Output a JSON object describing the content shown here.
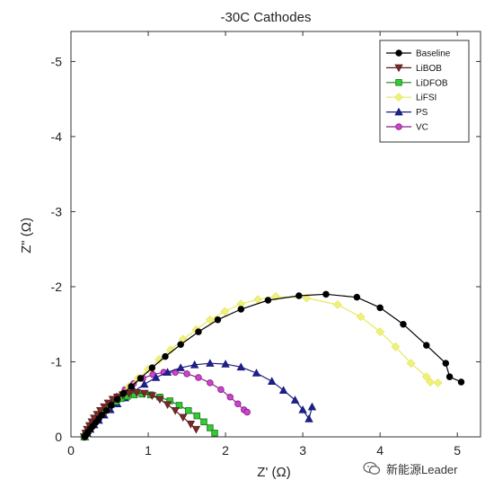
{
  "chart_data": {
    "type": "scatter",
    "title": "-30C Cathodes",
    "xlabel": "Z' (Ω)",
    "ylabel": "Z\" (Ω)",
    "xlim": [
      0,
      5.3
    ],
    "ylim": [
      0,
      -5.4
    ],
    "y_axis_inverted": true,
    "xticks": [
      0,
      1,
      2,
      3,
      4,
      5
    ],
    "xtick_labels": [
      "0",
      "1",
      "2",
      "3",
      "4",
      "5"
    ],
    "yticks": [
      0,
      -1,
      -2,
      -3,
      -4,
      -5
    ],
    "ytick_labels": [
      "0",
      "-1",
      "-2",
      "-3",
      "-4",
      "-5"
    ],
    "grid": false,
    "legend_position": "top-right",
    "series": [
      {
        "name": "Baseline",
        "marker": "circle",
        "line_color": "#000000",
        "fill_color": "#000000",
        "x": [
          0.18,
          0.2,
          0.22,
          0.25,
          0.28,
          0.32,
          0.36,
          0.4,
          0.46,
          0.52,
          0.6,
          0.68,
          0.78,
          0.9,
          1.05,
          1.22,
          1.42,
          1.65,
          1.9,
          2.2,
          2.55,
          2.95,
          3.3,
          3.7,
          4.0,
          4.3,
          4.6,
          4.85,
          4.9,
          5.05
        ],
        "y": [
          0.0,
          -0.03,
          -0.06,
          -0.1,
          -0.14,
          -0.19,
          -0.24,
          -0.29,
          -0.35,
          -0.42,
          -0.5,
          -0.58,
          -0.67,
          -0.78,
          -0.92,
          -1.07,
          -1.23,
          -1.4,
          -1.56,
          -1.7,
          -1.82,
          -1.88,
          -1.9,
          -1.86,
          -1.72,
          -1.5,
          -1.22,
          -0.98,
          -0.8,
          -0.73
        ]
      },
      {
        "name": "LiBOB",
        "marker": "triangle-down",
        "line_color": "#5a1f1f",
        "fill_color": "#7a2a2a",
        "x": [
          0.17,
          0.19,
          0.21,
          0.24,
          0.27,
          0.3,
          0.34,
          0.38,
          0.43,
          0.48,
          0.54,
          0.6,
          0.67,
          0.75,
          0.85,
          0.95,
          1.05,
          1.15,
          1.25,
          1.35,
          1.45,
          1.55,
          1.62
        ],
        "y": [
          0.0,
          -0.05,
          -0.1,
          -0.15,
          -0.2,
          -0.25,
          -0.3,
          -0.35,
          -0.4,
          -0.45,
          -0.5,
          -0.53,
          -0.56,
          -0.58,
          -0.59,
          -0.58,
          -0.55,
          -0.5,
          -0.43,
          -0.35,
          -0.26,
          -0.17,
          -0.1
        ]
      },
      {
        "name": "LiDFOB",
        "marker": "square",
        "line_color": "#1e7d1e",
        "fill_color": "#33cc33",
        "x": [
          0.17,
          0.19,
          0.22,
          0.25,
          0.28,
          0.32,
          0.36,
          0.41,
          0.46,
          0.52,
          0.58,
          0.65,
          0.73,
          0.82,
          0.92,
          1.03,
          1.15,
          1.28,
          1.4,
          1.52,
          1.63,
          1.72,
          1.8,
          1.86
        ],
        "y": [
          0.0,
          -0.04,
          -0.08,
          -0.13,
          -0.18,
          -0.23,
          -0.28,
          -0.33,
          -0.38,
          -0.43,
          -0.47,
          -0.51,
          -0.54,
          -0.56,
          -0.57,
          -0.56,
          -0.53,
          -0.48,
          -0.42,
          -0.35,
          -0.28,
          -0.2,
          -0.12,
          -0.05
        ]
      },
      {
        "name": "LiFSI",
        "marker": "diamond",
        "line_color": "#e8e860",
        "fill_color": "#f0f080",
        "x": [
          0.19,
          0.22,
          0.26,
          0.3,
          0.35,
          0.41,
          0.48,
          0.56,
          0.65,
          0.75,
          0.87,
          1.0,
          1.14,
          1.29,
          1.45,
          1.62,
          1.8,
          1.99,
          2.2,
          2.42,
          2.65,
          3.05,
          3.45,
          3.75,
          4.0,
          4.2,
          4.4,
          4.6,
          4.65,
          4.75
        ],
        "y": [
          0.0,
          -0.06,
          -0.12,
          -0.18,
          -0.25,
          -0.32,
          -0.4,
          -0.48,
          -0.57,
          -0.67,
          -0.78,
          -0.9,
          -1.03,
          -1.16,
          -1.3,
          -1.43,
          -1.56,
          -1.67,
          -1.77,
          -1.83,
          -1.87,
          -1.85,
          -1.76,
          -1.6,
          -1.4,
          -1.2,
          -0.98,
          -0.8,
          -0.73,
          -0.72
        ]
      },
      {
        "name": "PS",
        "marker": "triangle-up",
        "line_color": "#1a1a7a",
        "fill_color": "#1f1f8f",
        "x": [
          0.18,
          0.21,
          0.25,
          0.3,
          0.36,
          0.43,
          0.51,
          0.6,
          0.7,
          0.82,
          0.95,
          1.1,
          1.25,
          1.42,
          1.6,
          1.8,
          2.0,
          2.2,
          2.4,
          2.6,
          2.75,
          2.9,
          3.0,
          3.08,
          3.12
        ],
        "y": [
          0.0,
          -0.05,
          -0.1,
          -0.16,
          -0.22,
          -0.29,
          -0.36,
          -0.44,
          -0.52,
          -0.61,
          -0.7,
          -0.79,
          -0.86,
          -0.92,
          -0.96,
          -0.98,
          -0.97,
          -0.93,
          -0.85,
          -0.74,
          -0.62,
          -0.49,
          -0.36,
          -0.24,
          -0.4
        ]
      },
      {
        "name": "VC",
        "marker": "circle-open",
        "line_color": "#8a1f8a",
        "fill_color": "#cc44cc",
        "x": [
          0.18,
          0.21,
          0.25,
          0.3,
          0.36,
          0.43,
          0.51,
          0.6,
          0.7,
          0.81,
          0.93,
          1.06,
          1.2,
          1.35,
          1.5,
          1.65,
          1.8,
          1.94,
          2.06,
          2.16,
          2.24,
          2.28
        ],
        "y": [
          0.0,
          -0.06,
          -0.13,
          -0.2,
          -0.28,
          -0.36,
          -0.45,
          -0.54,
          -0.63,
          -0.71,
          -0.78,
          -0.83,
          -0.86,
          -0.86,
          -0.84,
          -0.79,
          -0.72,
          -0.63,
          -0.53,
          -0.44,
          -0.36,
          -0.33
        ]
      }
    ]
  },
  "watermark": {
    "text": "新能源Leader",
    "icon": "wechat-bubble-icon"
  }
}
